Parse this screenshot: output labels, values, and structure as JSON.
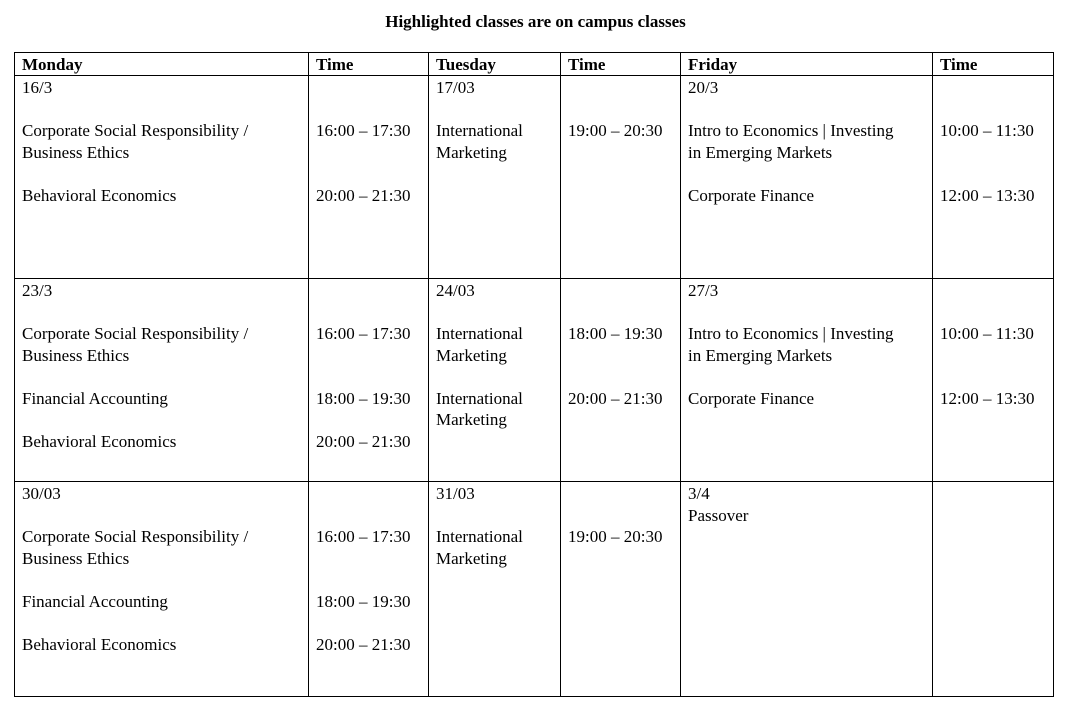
{
  "title": "Highlighted classes are on campus classes",
  "headers": [
    "Monday",
    "Time",
    "Tuesday",
    "Time",
    "Friday",
    "Time"
  ],
  "weeks": [
    {
      "cells": [
        [
          "16/3",
          "",
          "Corporate Social Responsibility /",
          "Business Ethics",
          "",
          "Behavioral Economics"
        ],
        [
          "",
          "",
          "16:00 – 17:30",
          "",
          "",
          "20:00 – 21:30"
        ],
        [
          "17/03",
          "",
          "International",
          "Marketing"
        ],
        [
          "",
          "",
          "19:00 – 20:30"
        ],
        [
          "20/3",
          "",
          "Intro to Economics | Investing",
          "in Emerging Markets",
          "",
          "Corporate Finance"
        ],
        [
          "",
          "",
          "10:00 – 11:30",
          "",
          "",
          "12:00 – 13:30"
        ]
      ]
    },
    {
      "cells": [
        [
          "23/3",
          "",
          "Corporate Social Responsibility /",
          "Business Ethics",
          "",
          "Financial Accounting",
          "",
          "Behavioral Economics"
        ],
        [
          "",
          "",
          "16:00 – 17:30",
          "",
          "",
          "18:00 – 19:30",
          "",
          "20:00 – 21:30"
        ],
        [
          "24/03",
          "",
          "International",
          "Marketing",
          "",
          "International",
          "Marketing"
        ],
        [
          "",
          "",
          "18:00 – 19:30",
          "",
          "",
          "20:00 – 21:30"
        ],
        [
          "27/3",
          "",
          "Intro to Economics | Investing",
          "in Emerging Markets",
          "",
          "Corporate Finance"
        ],
        [
          "",
          "",
          "10:00 – 11:30",
          "",
          "",
          "12:00 – 13:30"
        ]
      ]
    },
    {
      "cells": [
        [
          "30/03",
          "",
          "Corporate Social Responsibility /",
          "Business Ethics",
          "",
          "Financial Accounting",
          "",
          "Behavioral Economics"
        ],
        [
          "",
          "",
          "16:00 – 17:30",
          "",
          "",
          "18:00 – 19:30",
          "",
          "20:00 – 21:30"
        ],
        [
          "31/03",
          "",
          "International",
          "Marketing"
        ],
        [
          "",
          "",
          "19:00 – 20:30"
        ],
        [
          "3/4",
          "Passover"
        ],
        []
      ]
    }
  ]
}
